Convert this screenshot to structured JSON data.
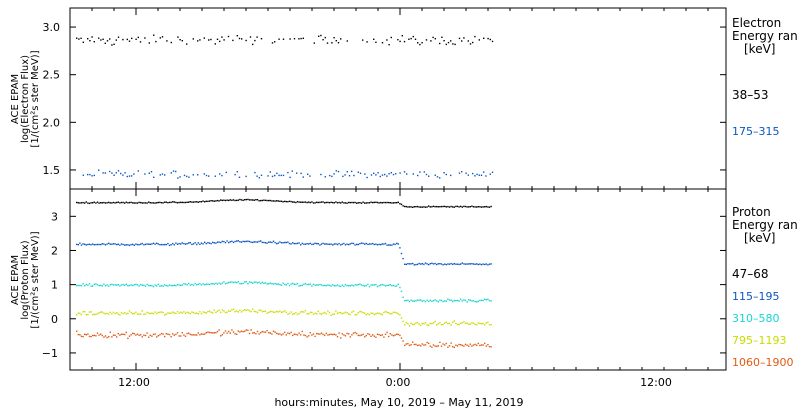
{
  "xlabel": "hours:minutes, May 10, 2019 – May 11, 2019",
  "x_tick_labels": [
    "12:00",
    "0:00",
    "12:00"
  ],
  "chart_data": [
    {
      "type": "scatter",
      "ylabel_lines": [
        "ACE EPAM",
        "log(Electron Flux)",
        "[1/(cm²s ster MeV)]"
      ],
      "ylim": [
        1.3,
        3.2
      ],
      "yticks": [
        1.5,
        2.0,
        2.5,
        3.0
      ],
      "ytick_labels": [
        "1.5",
        "2.0",
        "2.5",
        "3.0"
      ],
      "legend_title": [
        "Electron",
        "Energy ran",
        "[keV]"
      ],
      "series": [
        {
          "name": "38–53",
          "color": "#000000",
          "level": 2.87,
          "noise": 0.05
        },
        {
          "name": "175–315",
          "color": "#0b55c4",
          "level": 1.46,
          "noise": 0.04
        }
      ]
    },
    {
      "type": "scatter",
      "ylabel_lines": [
        "ACE EPAM",
        "log(Proton Flux)",
        "[1/(cm²s ster MeV)]"
      ],
      "ylim": [
        -1.5,
        3.8
      ],
      "yticks": [
        -1,
        0,
        1,
        2,
        3
      ],
      "ytick_labels": [
        "−1",
        "0",
        "1",
        "2",
        "3"
      ],
      "legend_title": [
        "Proton",
        "Energy ran",
        "[keV]"
      ],
      "series": [
        {
          "name": "47–68",
          "color": "#000000",
          "before": 3.42,
          "after": 3.3,
          "noise": 0.02
        },
        {
          "name": "115–195",
          "color": "#0b55c4",
          "before": 2.2,
          "after": 1.62,
          "noise": 0.04
        },
        {
          "name": "310–580",
          "color": "#19d4d4",
          "before": 1.0,
          "after": 0.55,
          "noise": 0.05
        },
        {
          "name": "795–1193",
          "color": "#c8dc00",
          "before": 0.18,
          "after": -0.12,
          "noise": 0.07
        },
        {
          "name": "1060–1900",
          "color": "#e05a14",
          "before": -0.45,
          "after": -0.75,
          "noise": 0.1
        }
      ]
    }
  ]
}
